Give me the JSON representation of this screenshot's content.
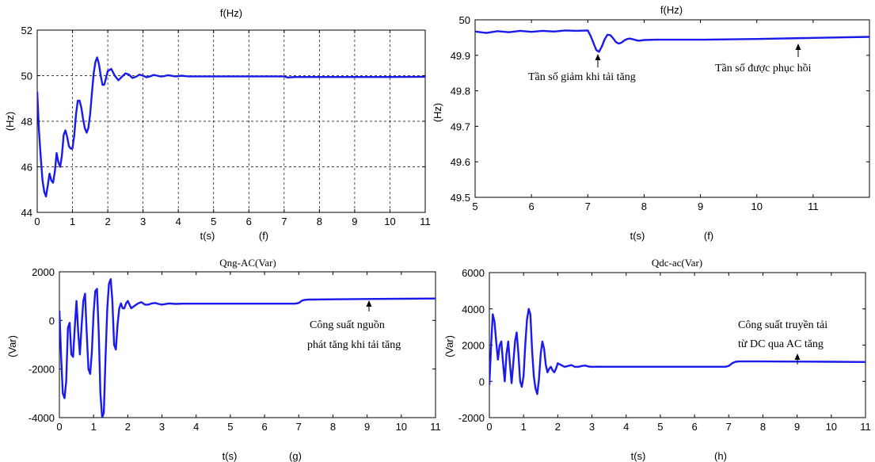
{
  "colors": {
    "series": "#1a1aee",
    "axis": "#000000",
    "background": "#ffffff"
  },
  "chart_data": [
    {
      "id": "a",
      "type": "line",
      "title": "f(Hz)",
      "xlabel": "t(s)",
      "ylabel": "(Hz)",
      "panel_label": "(f)",
      "xlim": [
        0,
        11
      ],
      "ylim": [
        44,
        52
      ],
      "xticks": [
        0,
        1,
        2,
        3,
        4,
        5,
        6,
        7,
        8,
        9,
        10,
        11
      ],
      "yticks": [
        44,
        46,
        48,
        50,
        52
      ],
      "grid": true,
      "annotations": [],
      "series": [
        {
          "x": [
            0,
            0.05,
            0.1,
            0.15,
            0.2,
            0.25,
            0.3,
            0.35,
            0.4,
            0.45,
            0.5,
            0.55,
            0.6,
            0.65,
            0.7,
            0.75,
            0.8,
            0.85,
            0.9,
            0.95,
            1.0,
            1.05,
            1.1,
            1.15,
            1.2,
            1.25,
            1.3,
            1.35,
            1.4,
            1.45,
            1.5,
            1.55,
            1.6,
            1.65,
            1.7,
            1.75,
            1.8,
            1.85,
            1.9,
            1.95,
            2.0,
            2.1,
            2.2,
            2.3,
            2.4,
            2.5,
            2.6,
            2.7,
            2.8,
            2.9,
            3.0,
            3.1,
            3.2,
            3.3,
            3.4,
            3.5,
            3.6,
            3.7,
            3.8,
            3.9,
            4.0,
            4.1,
            4.2,
            4.3,
            5,
            6,
            7,
            7.1,
            7.2,
            7.3,
            8,
            9,
            10,
            11
          ],
          "y": [
            49.3,
            47.6,
            46.4,
            45.4,
            44.9,
            44.7,
            45.2,
            45.7,
            45.4,
            45.3,
            45.8,
            46.6,
            46.2,
            46.0,
            46.5,
            47.4,
            47.6,
            47.3,
            46.9,
            46.8,
            46.8,
            47.4,
            48.3,
            48.9,
            48.9,
            48.6,
            48.1,
            47.7,
            47.5,
            47.7,
            48.3,
            49.2,
            50.1,
            50.6,
            50.8,
            50.5,
            50.0,
            49.6,
            49.6,
            49.9,
            50.2,
            50.3,
            50.0,
            49.8,
            49.95,
            50.1,
            50.05,
            49.9,
            49.95,
            50.05,
            50.0,
            49.93,
            49.97,
            50.03,
            50.0,
            49.96,
            49.98,
            50.02,
            50.0,
            49.97,
            49.98,
            50.0,
            49.98,
            49.97,
            49.97,
            49.97,
            49.97,
            49.92,
            49.93,
            49.94,
            49.94,
            49.94,
            49.94,
            49.95
          ]
        }
      ]
    },
    {
      "id": "b",
      "type": "line",
      "title": "f(Hz)",
      "xlabel": "t(s)",
      "ylabel": "(Hz)",
      "panel_label": "(f)",
      "xlim": [
        5,
        12
      ],
      "ylim": [
        49.5,
        50.0
      ],
      "xticks": [
        5,
        6,
        7,
        8,
        9,
        10,
        11
      ],
      "yticks": [
        49.5,
        49.6,
        49.7,
        49.8,
        49.9,
        50.0
      ],
      "ytick_labels": [
        "49.5",
        "49.6",
        "49.7",
        "49.8",
        "49.9",
        "50"
      ],
      "grid": false,
      "annotations": [
        {
          "text": "Tần số giảm khi tải tăng",
          "x": 7.2,
          "y": 49.91
        },
        {
          "text": "Tần số được phục hồi",
          "x": 10.75,
          "y": 49.947
        }
      ],
      "series": [
        {
          "x": [
            5,
            5.2,
            5.4,
            5.6,
            5.8,
            6,
            6.2,
            6.4,
            6.6,
            6.8,
            7.0,
            7.05,
            7.1,
            7.15,
            7.2,
            7.25,
            7.3,
            7.35,
            7.4,
            7.45,
            7.5,
            7.55,
            7.6,
            7.65,
            7.7,
            7.75,
            7.8,
            7.9,
            8.0,
            8.2,
            8.5,
            9,
            10,
            11,
            12
          ],
          "y": [
            49.967,
            49.963,
            49.968,
            49.965,
            49.969,
            49.966,
            49.969,
            49.967,
            49.97,
            49.969,
            49.97,
            49.955,
            49.935,
            49.915,
            49.91,
            49.925,
            49.945,
            49.958,
            49.957,
            49.948,
            49.937,
            49.933,
            49.936,
            49.942,
            49.946,
            49.947,
            49.945,
            49.941,
            49.943,
            49.944,
            49.944,
            49.944,
            49.946,
            49.949,
            49.952
          ]
        }
      ]
    },
    {
      "id": "c",
      "type": "line",
      "title": "Qng-AC(Var)",
      "xlabel": "t(s)",
      "ylabel": "(Var)",
      "panel_label": "(g)",
      "xlim": [
        0,
        11
      ],
      "ylim": [
        -4000,
        2000
      ],
      "xticks": [
        0,
        1,
        2,
        3,
        4,
        5,
        6,
        7,
        8,
        9,
        10,
        11
      ],
      "yticks": [
        -4000,
        -2000,
        0,
        2000
      ],
      "grid": false,
      "annotations": [
        {
          "text": "Công suất nguồn",
          "x": 9.0,
          "y": 900
        },
        {
          "text": "phát tăng khi tải tăng",
          "x": 9.0,
          "y": 900
        }
      ],
      "series": [
        {
          "x": [
            0,
            0.05,
            0.1,
            0.15,
            0.2,
            0.25,
            0.3,
            0.35,
            0.4,
            0.45,
            0.5,
            0.55,
            0.6,
            0.65,
            0.7,
            0.75,
            0.8,
            0.85,
            0.9,
            0.95,
            1.0,
            1.05,
            1.1,
            1.15,
            1.2,
            1.25,
            1.3,
            1.35,
            1.4,
            1.45,
            1.5,
            1.55,
            1.6,
            1.65,
            1.7,
            1.75,
            1.8,
            1.85,
            1.9,
            1.95,
            2.0,
            2.1,
            2.2,
            2.3,
            2.4,
            2.5,
            2.6,
            2.7,
            2.8,
            2.9,
            3.0,
            3.2,
            3.4,
            3.6,
            3.8,
            4.0,
            5,
            6,
            6.9,
            7.0,
            7.1,
            7.2,
            7.3,
            7.4,
            8,
            9,
            10,
            11
          ],
          "y": [
            400,
            -1500,
            -3000,
            -3200,
            -2500,
            -300,
            -100,
            -1400,
            -1500,
            -300,
            800,
            -500,
            -1400,
            -200,
            800,
            1100,
            -500,
            -2000,
            -2200,
            -1300,
            300,
            1200,
            1300,
            -500,
            -3000,
            -4000,
            -3800,
            -1500,
            500,
            1500,
            1700,
            800,
            -1000,
            -1200,
            -200,
            500,
            700,
            500,
            500,
            700,
            800,
            500,
            600,
            700,
            750,
            650,
            650,
            700,
            720,
            680,
            650,
            700,
            680,
            690,
            690,
            690,
            690,
            690,
            690,
            720,
            820,
            850,
            860,
            860,
            870,
            880,
            890,
            900
          ]
        }
      ]
    },
    {
      "id": "d",
      "type": "line",
      "title": "Qdc-ac(Var)",
      "xlabel": "t(s)",
      "ylabel": "(Var)",
      "panel_label": "(h)",
      "xlim": [
        0,
        11
      ],
      "ylim": [
        -2000,
        6000
      ],
      "xticks": [
        0,
        1,
        2,
        3,
        4,
        5,
        6,
        7,
        8,
        9,
        10,
        11
      ],
      "yticks": [
        -2000,
        0,
        2000,
        4000,
        6000
      ],
      "grid": false,
      "annotations": [
        {
          "text": "Công suất truyền tải",
          "x": 9.0,
          "y": 1100
        },
        {
          "text": "từ DC qua AC tăng",
          "x": 9.0,
          "y": 1100
        }
      ],
      "series": [
        {
          "x": [
            0,
            0.05,
            0.1,
            0.15,
            0.2,
            0.25,
            0.3,
            0.35,
            0.4,
            0.45,
            0.5,
            0.55,
            0.6,
            0.65,
            0.7,
            0.75,
            0.8,
            0.85,
            0.9,
            0.95,
            1.0,
            1.05,
            1.1,
            1.15,
            1.2,
            1.25,
            1.3,
            1.35,
            1.4,
            1.45,
            1.5,
            1.55,
            1.6,
            1.65,
            1.7,
            1.75,
            1.8,
            1.85,
            1.9,
            1.95,
            2.0,
            2.1,
            2.2,
            2.3,
            2.4,
            2.5,
            2.6,
            2.7,
            2.8,
            2.9,
            3.0,
            3.2,
            3.4,
            3.6,
            3.8,
            4.0,
            5,
            6,
            6.9,
            7.0,
            7.1,
            7.2,
            7.3,
            7.4,
            8,
            9,
            10,
            11
          ],
          "y": [
            -200,
            2000,
            3700,
            3300,
            2200,
            1200,
            2000,
            2200,
            1000,
            0,
            1500,
            2200,
            1000,
            -100,
            1000,
            2200,
            2700,
            1500,
            0,
            -300,
            300,
            2000,
            3400,
            4000,
            3700,
            1700,
            300,
            -400,
            -700,
            100,
            1500,
            2200,
            1800,
            900,
            500,
            700,
            800,
            600,
            500,
            700,
            1000,
            900,
            800,
            850,
            900,
            800,
            800,
            850,
            870,
            820,
            800,
            810,
            805,
            805,
            805,
            805,
            805,
            805,
            805,
            850,
            1000,
            1080,
            1100,
            1100,
            1100,
            1090,
            1080,
            1070
          ]
        }
      ]
    }
  ]
}
